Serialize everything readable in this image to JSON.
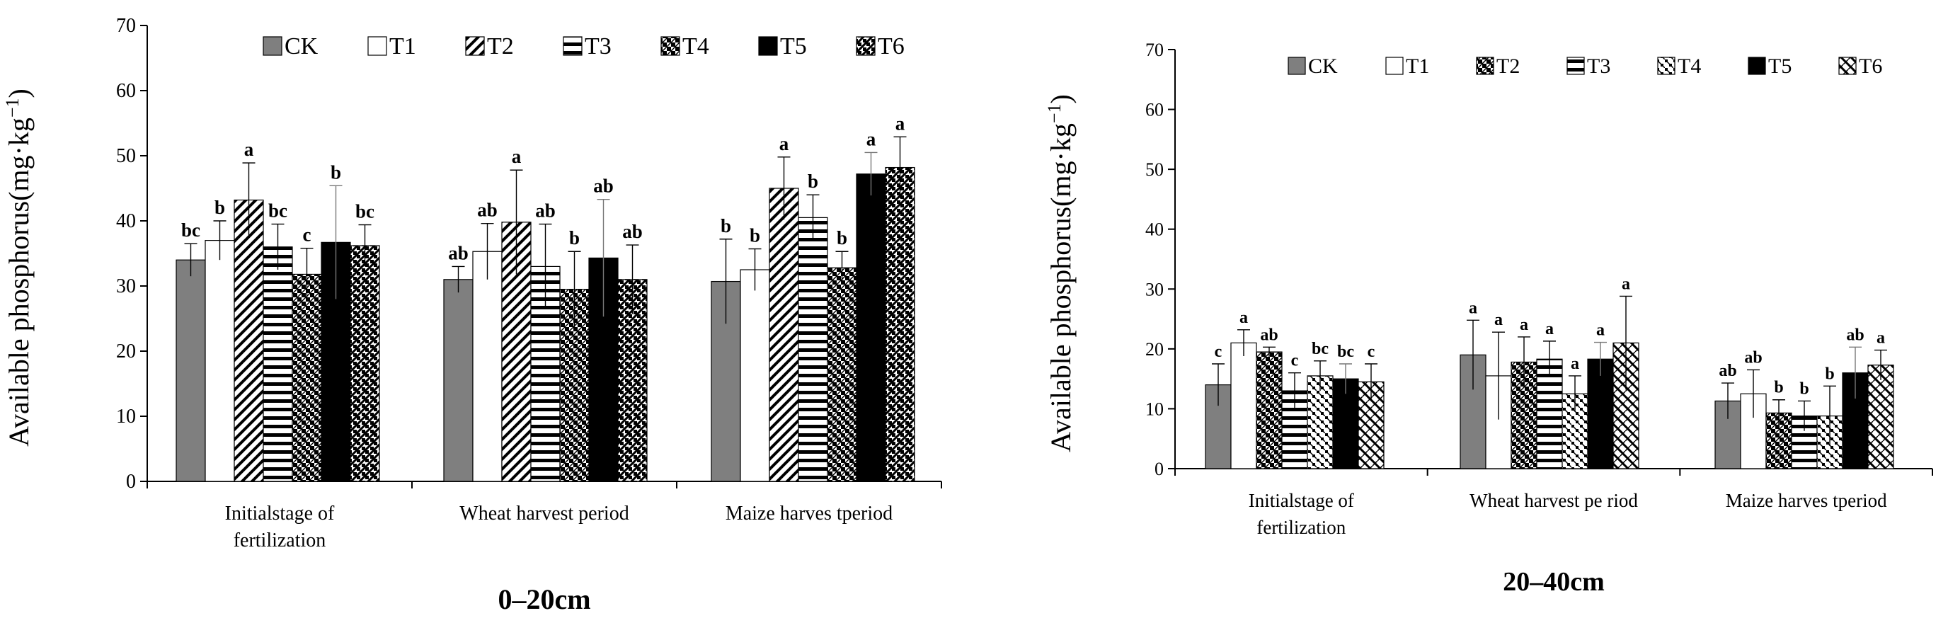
{
  "chart_data": [
    {
      "type": "bar",
      "title": "0–20cm",
      "ylabel_main": "Available phosphorus(mg·kg",
      "ylabel_sup": "−1",
      "ylabel_close": ")",
      "ylim": [
        0,
        70
      ],
      "yticks": [
        "0",
        "10",
        "20",
        "30",
        "40",
        "50",
        "60",
        "70"
      ],
      "categories": [
        [
          "Initialstage of",
          "fertilization"
        ],
        [
          "Wheat harvest period"
        ],
        [
          "Maize harves tperiod"
        ]
      ],
      "series": [
        {
          "name": "CK",
          "pattern": "solid-gray",
          "values": [
            34.0,
            31.0,
            30.7
          ],
          "errors": [
            2.5,
            2.0,
            6.5
          ],
          "letters": [
            "bc",
            "ab",
            "b"
          ]
        },
        {
          "name": "T1",
          "pattern": "white",
          "values": [
            37.0,
            35.3,
            32.5
          ],
          "errors": [
            3.0,
            4.3,
            3.2
          ],
          "letters": [
            "b",
            "ab",
            "b"
          ]
        },
        {
          "name": "T2",
          "pattern": "diagonal",
          "values": [
            43.2,
            39.8,
            45.0
          ],
          "errors": [
            5.7,
            8.0,
            4.8
          ],
          "letters": [
            "a",
            "a",
            "a"
          ]
        },
        {
          "name": "T3",
          "pattern": "horizontal",
          "values": [
            36.0,
            33.0,
            40.5
          ],
          "errors": [
            3.5,
            6.5,
            3.5
          ],
          "letters": [
            "bc",
            "ab",
            "b"
          ]
        },
        {
          "name": "T4",
          "pattern": "checker",
          "values": [
            31.8,
            29.5,
            32.8
          ],
          "errors": [
            4.0,
            5.8,
            2.5
          ],
          "letters": [
            "c",
            "b",
            "b"
          ]
        },
        {
          "name": "T5",
          "pattern": "solid-black",
          "values": [
            36.7,
            34.3,
            47.2
          ],
          "errors": [
            8.7,
            9.0,
            3.3
          ],
          "letters": [
            "b",
            "ab",
            "a"
          ]
        },
        {
          "name": "T6",
          "pattern": "weave",
          "values": [
            36.2,
            31.0,
            48.2
          ],
          "errors": [
            3.2,
            5.3,
            4.7
          ],
          "letters": [
            "bc",
            "ab",
            "a"
          ]
        }
      ]
    },
    {
      "type": "bar",
      "title": "20–40cm",
      "ylabel_main": "Available phosphorus(mg·kg",
      "ylabel_sup": "−1",
      "ylabel_close": ")",
      "ylim": [
        0,
        70
      ],
      "yticks": [
        "0",
        "10",
        "20",
        "30",
        "40",
        "50",
        "60",
        "70"
      ],
      "categories": [
        [
          "Initialstage of",
          "fertilization"
        ],
        [
          "Wheat harvest pe riod"
        ],
        [
          "Maize harves tperiod"
        ]
      ],
      "series": [
        {
          "name": "CK",
          "pattern": "solid-gray",
          "values": [
            14.0,
            19.0,
            11.3
          ],
          "errors": [
            3.5,
            5.8,
            3.0
          ],
          "letters": [
            "c",
            "a",
            "ab"
          ]
        },
        {
          "name": "T1",
          "pattern": "white",
          "values": [
            21.0,
            15.5,
            12.5
          ],
          "errors": [
            2.2,
            7.3,
            4.0
          ],
          "letters": [
            "a",
            "a",
            "ab"
          ]
        },
        {
          "name": "T2",
          "pattern": "checker",
          "values": [
            19.5,
            17.8,
            9.3
          ],
          "errors": [
            0.8,
            4.2,
            2.2
          ],
          "letters": [
            "ab",
            "a",
            "b"
          ]
        },
        {
          "name": "T3",
          "pattern": "horizontal",
          "values": [
            13.0,
            18.3,
            8.8
          ],
          "errors": [
            3.0,
            3.0,
            2.5
          ],
          "letters": [
            "c",
            "a",
            "b"
          ]
        },
        {
          "name": "T4",
          "pattern": "checker2",
          "values": [
            15.5,
            12.5,
            8.8
          ],
          "errors": [
            2.5,
            3.0,
            5.0
          ],
          "letters": [
            "bc",
            "a",
            "b"
          ]
        },
        {
          "name": "T5",
          "pattern": "solid-black",
          "values": [
            15.0,
            18.3,
            16.0
          ],
          "errors": [
            2.5,
            2.8,
            4.3
          ],
          "letters": [
            "bc",
            "a",
            "ab"
          ]
        },
        {
          "name": "T6",
          "pattern": "diagonal2",
          "values": [
            14.5,
            21.0,
            17.3
          ],
          "errors": [
            3.0,
            7.8,
            2.5
          ],
          "letters": [
            "c",
            "a",
            "a"
          ]
        }
      ]
    }
  ]
}
